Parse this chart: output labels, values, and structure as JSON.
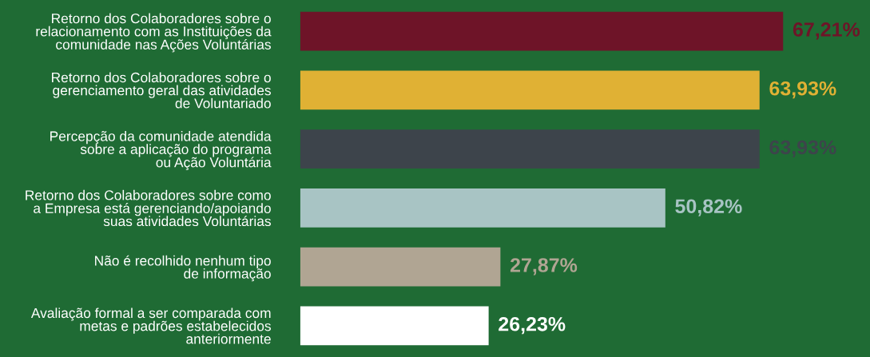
{
  "chart_data": {
    "type": "bar",
    "orientation": "horizontal",
    "categories": [
      "Retorno dos Colaboradores sobre o\nrelacionamento com as Instituições da\ncomunidade nas Ações Voluntárias",
      "Retorno dos Colaboradores sobre o\ngerenciamento geral das atividades\nde Voluntariado",
      "Percepção da comunidade atendida\nsobre a aplicação do programa\nou Ação Voluntária",
      "Retorno dos Colaboradores sobre como\na Empresa está gerenciando/apoiando\nsuas atividades Voluntárias",
      "Não é recolhido nenhum tipo\nde informação",
      "Avaliação formal a ser comparada com\nmetas e padrões estabelecidos\nanteriormente"
    ],
    "values": [
      67.21,
      63.93,
      63.93,
      50.82,
      27.87,
      26.23
    ],
    "colors": [
      "#6e1428",
      "#e0b134",
      "#3d444b",
      "#a8c4c4",
      "#b0a593",
      "#ffffff"
    ],
    "value_labels": [
      "67,21%",
      "63,93%",
      "63,93%",
      "50,82%",
      "27,87%",
      "26,23%"
    ],
    "xlim": [
      0,
      79.3
    ],
    "grid": false,
    "legend": false
  }
}
